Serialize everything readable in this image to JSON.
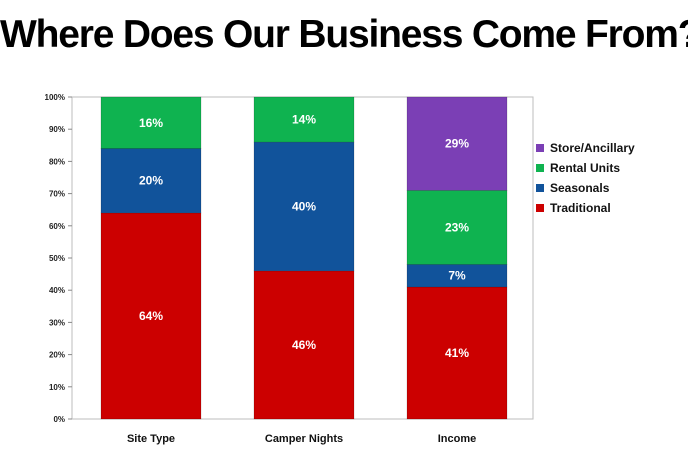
{
  "chart_data": {
    "type": "bar",
    "stacked": true,
    "title": "Where Does Our Business Come From?",
    "xlabel": "",
    "ylabel": "",
    "ylim": [
      0,
      100
    ],
    "y_ticks": [
      "0%",
      "10%",
      "20%",
      "30%",
      "40%",
      "50%",
      "60%",
      "70%",
      "80%",
      "90%",
      "100%"
    ],
    "categories": [
      "Site Type",
      "Camper Nights",
      "Income"
    ],
    "series": [
      {
        "name": "Traditional",
        "color": "#cc0000",
        "values": [
          64,
          46,
          41
        ],
        "labels": [
          "64%",
          "46%",
          "41%"
        ]
      },
      {
        "name": "Seasonals",
        "color": "#11539b",
        "values": [
          20,
          40,
          7
        ],
        "labels": [
          "20%",
          "40%",
          "7%"
        ]
      },
      {
        "name": "Rental Units",
        "color": "#0fb350",
        "values": [
          16,
          14,
          23
        ],
        "labels": [
          "16%",
          "14%",
          "23%"
        ]
      },
      {
        "name": "Store/Ancillary",
        "color": "#7b3fb5",
        "values": [
          0,
          0,
          29
        ],
        "labels": [
          "",
          "",
          "29%"
        ]
      }
    ],
    "legend_order": [
      "Store/Ancillary",
      "Rental Units",
      "Seasonals",
      "Traditional"
    ],
    "legend_position": "right",
    "grid": false
  }
}
